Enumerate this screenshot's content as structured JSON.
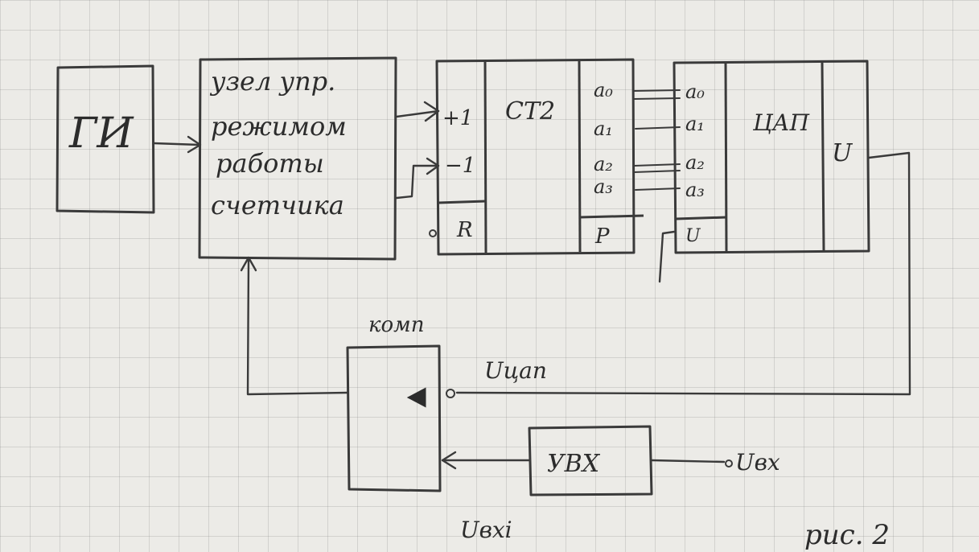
{
  "blocks": {
    "generator": {
      "label": "ГИ"
    },
    "control": {
      "lines": [
        "узел упр.",
        "режимом",
        "работы",
        "счетчика"
      ]
    },
    "counter": {
      "inputs": {
        "up": "+1",
        "down": "−1",
        "reset": "R"
      },
      "title": "CT2",
      "outputs": [
        "a₀",
        "a₁",
        "a₂",
        "a₃"
      ],
      "carry": "P"
    },
    "dac": {
      "inputs": [
        "a₀",
        "a₁",
        "a₂",
        "a₃"
      ],
      "u_in": "U",
      "title": "ЦАП",
      "output": "U"
    },
    "comparator": {
      "label": "комп",
      "symbol": "◁"
    },
    "sample_hold": {
      "label": "УВХ"
    }
  },
  "signals": {
    "u_dac": "Uцап",
    "u_in": "Uвх",
    "u_in_i": "Uвхi"
  },
  "caption": "рис. 2"
}
